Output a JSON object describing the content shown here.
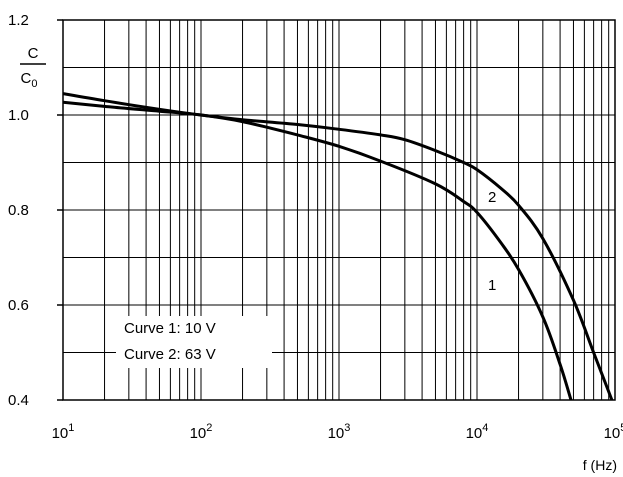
{
  "chart_data": {
    "type": "line",
    "xscale": "log",
    "xlim": [
      10,
      100000
    ],
    "ylim": [
      0.4,
      1.2
    ],
    "grid": true,
    "xlabel": "f (Hz)",
    "ylabel": {
      "numerator": "C",
      "denominator": "C",
      "denominator_sub": "0"
    },
    "x_ticks": [
      {
        "base": "10",
        "exp": "1",
        "value": 10
      },
      {
        "base": "10",
        "exp": "2",
        "value": 100
      },
      {
        "base": "10",
        "exp": "3",
        "value": 1000
      },
      {
        "base": "10",
        "exp": "4",
        "value": 10000
      },
      {
        "base": "10",
        "exp": "5",
        "value": 100000
      }
    ],
    "y_ticks": [
      "0.4",
      "0.6",
      "0.8",
      "1.0",
      "1.2"
    ],
    "series": [
      {
        "label": "1",
        "x": [
          10,
          20,
          50,
          100,
          200,
          500,
          1000,
          2000,
          5000,
          8000,
          10000,
          15000,
          20000,
          30000,
          40000,
          48000
        ],
        "y": [
          1.027,
          1.018,
          1.008,
          1.0,
          0.986,
          0.958,
          0.934,
          0.903,
          0.855,
          0.818,
          0.795,
          0.73,
          0.675,
          0.575,
          0.475,
          0.4
        ]
      },
      {
        "label": "2",
        "x": [
          10,
          20,
          50,
          100,
          200,
          500,
          1000,
          2000,
          3000,
          5000,
          8000,
          10000,
          15000,
          20000,
          30000,
          50000,
          70000,
          95000
        ],
        "y": [
          1.045,
          1.03,
          1.012,
          1.0,
          0.99,
          0.98,
          0.97,
          0.958,
          0.948,
          0.925,
          0.9,
          0.885,
          0.845,
          0.81,
          0.74,
          0.61,
          0.5,
          0.4
        ]
      }
    ],
    "annotations": [
      "Curve 1: 10 V",
      "Curve 2: 63 V"
    ]
  }
}
